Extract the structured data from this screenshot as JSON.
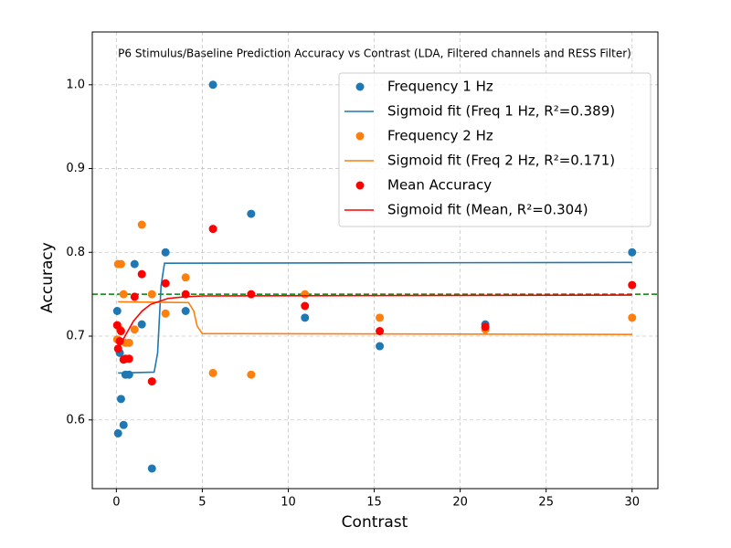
{
  "chart_data": {
    "type": "scatter",
    "title": "P6 Stimulus/Baseline Prediction Accuracy vs Contrast (LDA, Filtered channels and RESS Filter)",
    "x_label": "Contrast",
    "y_label": "Accuracy",
    "x": [
      0.05,
      0.1,
      0.2,
      0.27,
      0.42,
      0.53,
      0.74,
      1.06,
      1.48,
      2.07,
      2.86,
      4.03,
      5.62,
      7.84,
      10.97,
      15.32,
      21.46,
      30
    ],
    "series": [
      {
        "name": "Frequency 1 Hz",
        "mode": "points",
        "color": "#1f77b4",
        "values": [
          0.73,
          0.584,
          0.68,
          0.625,
          0.594,
          0.654,
          0.654,
          0.786,
          0.714,
          0.542,
          0.8,
          0.73,
          1.0,
          0.846,
          0.722,
          0.688,
          0.714,
          0.8
        ]
      },
      {
        "name": "Sigmoid fit (Freq 1 Hz, R²=0.389)",
        "mode": "line",
        "color": "#1f77b4",
        "x": [
          0.1,
          2.2,
          2.4,
          2.5,
          2.6,
          2.8,
          30
        ],
        "values": [
          0.656,
          0.657,
          0.68,
          0.72,
          0.76,
          0.787,
          0.788
        ]
      },
      {
        "name": "Frequency 2 Hz",
        "mode": "points",
        "color": "#ff7f0e",
        "values": [
          0.696,
          0.786,
          0.708,
          0.786,
          0.75,
          0.692,
          0.692,
          0.708,
          0.833,
          0.75,
          0.727,
          0.77,
          0.656,
          0.654,
          0.75,
          0.722,
          0.708,
          0.722
        ]
      },
      {
        "name": "Sigmoid fit (Freq 2 Hz, R²=0.171)",
        "mode": "line",
        "color": "#ff7f0e",
        "x": [
          0.1,
          4.2,
          4.5,
          4.7,
          5.0,
          30
        ],
        "values": [
          0.741,
          0.74,
          0.73,
          0.712,
          0.703,
          0.702
        ]
      },
      {
        "name": "Mean Accuracy",
        "mode": "points",
        "color": "red",
        "values": [
          0.713,
          0.685,
          0.694,
          0.706,
          0.672,
          0.673,
          0.673,
          0.747,
          0.774,
          0.646,
          0.763,
          0.75,
          0.828,
          0.75,
          0.736,
          0.706,
          0.711,
          0.761
        ]
      },
      {
        "name": "Sigmoid fit (Mean, R²=0.304)",
        "mode": "line",
        "color": "red",
        "x": [
          0.1,
          0.5,
          1,
          1.5,
          2,
          3,
          4,
          5,
          30
        ],
        "values": [
          0.684,
          0.7,
          0.718,
          0.73,
          0.738,
          0.745,
          0.747,
          0.748,
          0.749
        ]
      }
    ],
    "reference_line": {
      "value": 0.75,
      "color": "green"
    },
    "xlim": [
      -1.4,
      31.5
    ],
    "ylim": [
      0.518,
      1.063
    ],
    "xticks": [
      0,
      5,
      10,
      15,
      20,
      25,
      30
    ],
    "yticks": [
      0.6,
      0.7,
      0.8,
      0.9,
      {
        "value": 1,
        "label": "1.0"
      }
    ],
    "grid": true,
    "legend": "upper right"
  }
}
